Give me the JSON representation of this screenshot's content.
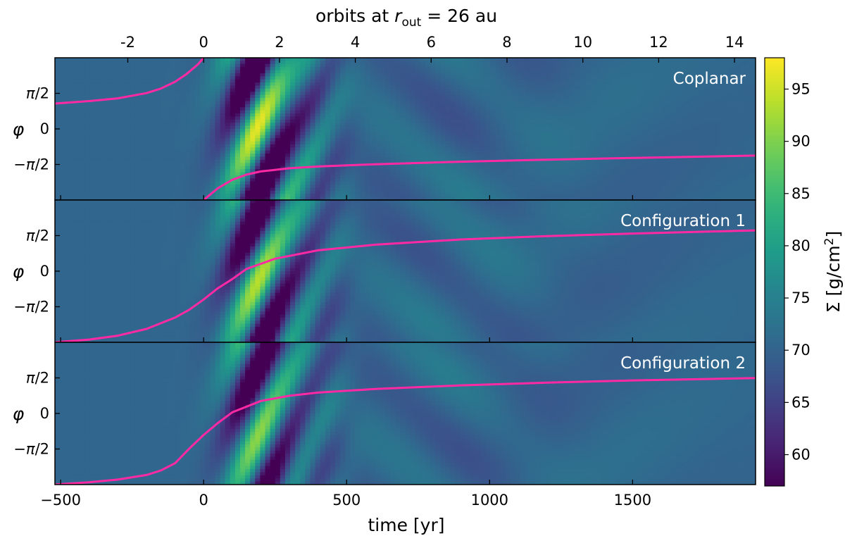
{
  "chart_data": {
    "type": "heatmap",
    "top_title": "orbits at r_out = 26 au",
    "top_title_parts": {
      "prefix": "orbits at ",
      "var": "r",
      "sub": "out",
      "suffix": " = 26 au"
    },
    "xlabel": "time [yr]",
    "xlim": [
      -520,
      1930
    ],
    "xticks": [
      -500,
      0,
      500,
      1000,
      1500
    ],
    "xtick_labels": [
      "−500",
      "0",
      "500",
      "1000",
      "1500"
    ],
    "top_axis": {
      "ticks": [
        -2,
        0,
        2,
        4,
        6,
        8,
        10,
        12,
        14
      ],
      "tick_labels": [
        "-2",
        "0",
        "2",
        "4",
        "6",
        "8",
        "10",
        "12",
        "14"
      ],
      "yr_per_orbit": 132.6
    },
    "ylabel": "φ",
    "ylim": [
      -3.1416,
      3.1416
    ],
    "yticks": [
      1.5708,
      0,
      -1.5708
    ],
    "ytick_labels": [
      "π/2",
      "0",
      "−π/2"
    ],
    "colorbar": {
      "label": "Σ [g/cm²]",
      "label_parts": {
        "prefix": "Σ [g/cm",
        "sup": "2",
        "suffix": "]"
      },
      "colormap": "viridis",
      "vmin": 57,
      "vmax": 98,
      "ticks": [
        60,
        65,
        70,
        75,
        80,
        85,
        90,
        95
      ],
      "tick_labels": [
        "60",
        "65",
        "70",
        "75",
        "80",
        "85",
        "90",
        "95"
      ]
    },
    "panels": [
      {
        "title": "Coplanar",
        "pink_curves": [
          {
            "t": [
              -520,
              -400,
              -300,
              -200,
              -150,
              -100,
              -60,
              -20,
              0
            ],
            "phi": [
              1.12,
              1.23,
              1.35,
              1.58,
              1.78,
              2.08,
              2.42,
              2.85,
              3.14
            ]
          },
          {
            "t": [
              0,
              50,
              100,
              150,
              200,
              300,
              400,
              600,
              900,
              1200,
              1500,
              1930
            ],
            "phi": [
              -3.14,
              -2.62,
              -2.25,
              -2.02,
              -1.88,
              -1.74,
              -1.66,
              -1.56,
              -1.45,
              -1.36,
              -1.28,
              -1.18
            ]
          }
        ]
      },
      {
        "title": "Configuration 1",
        "pink_curves": [
          {
            "t": [
              -520,
              -400,
              -300,
              -200,
              -100,
              -50,
              0,
              50,
              100,
              150,
              250,
              400,
              600,
              900,
              1200,
              1500,
              1930
            ],
            "phi": [
              -3.14,
              -3.02,
              -2.85,
              -2.55,
              -2.05,
              -1.7,
              -1.25,
              -0.75,
              -0.35,
              0.1,
              0.55,
              0.92,
              1.17,
              1.4,
              1.55,
              1.66,
              1.8
            ]
          }
        ]
      },
      {
        "title": "Configuration 2",
        "pink_curves": [
          {
            "t": [
              -520,
              -400,
              -300,
              -200,
              -150,
              -100,
              -50,
              0,
              50,
              100,
              200,
              300,
              400,
              600,
              900,
              1200,
              1500,
              1930
            ],
            "phi": [
              -3.14,
              -3.04,
              -2.92,
              -2.72,
              -2.52,
              -2.2,
              -1.55,
              -0.95,
              -0.42,
              0.05,
              0.55,
              0.78,
              0.92,
              1.08,
              1.24,
              1.36,
              1.46,
              1.56
            ]
          }
        ]
      }
    ],
    "colors": {
      "curve": "#ff2aa3",
      "frame": "#000000"
    }
  }
}
